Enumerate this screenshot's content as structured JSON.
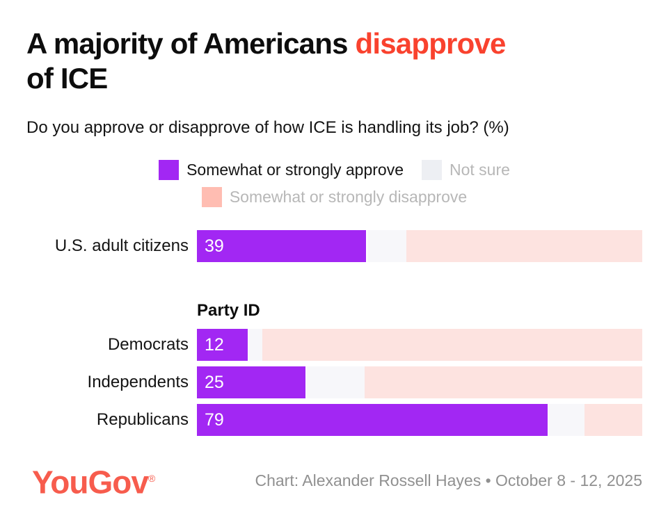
{
  "title": {
    "line1_pre": "A majority of Americans ",
    "highlight": "disapprove",
    "line2": "of ICE"
  },
  "subtitle": "Do you approve or disapprove of how ICE is handling its job? (%)",
  "legend": {
    "items": [
      {
        "label": "Somewhat or strongly approve",
        "swatch_color": "#A227F3",
        "text_color": "#141414"
      },
      {
        "label": "Not sure",
        "swatch_color": "#EDEFF3",
        "text_color": "#B7B7B7"
      },
      {
        "label": "Somewhat or strongly disapprove",
        "swatch_color": "#FFBDB2",
        "text_color": "#B7B7B7"
      }
    ]
  },
  "chart_data": {
    "type": "bar",
    "stacked": true,
    "orientation": "horizontal",
    "unit": "%",
    "title": "A majority of Americans disapprove of ICE",
    "question": "Do you approve or disapprove of how ICE is handling its job? (%)",
    "series_names": [
      "Somewhat or strongly approve",
      "Not sure",
      "Somewhat or strongly disapprove"
    ],
    "group_header": "Party ID",
    "value_labels_note": "only approve segment values are labeled on bars; not-sure and disapprove values estimated from segment widths",
    "rows": [
      {
        "label": "U.S. adult citizens",
        "approve": 39,
        "not_sure": 9,
        "disapprove": 54
      },
      {
        "label": "Democrats",
        "approve": 12,
        "not_sure": 3,
        "disapprove": 87
      },
      {
        "label": "Independents",
        "approve": 25,
        "not_sure": 13,
        "disapprove": 63
      },
      {
        "label": "Republicans",
        "approve": 79,
        "not_sure": 8,
        "disapprove": 13
      }
    ]
  },
  "colors": {
    "approve_bar": "#A227F3",
    "not_sure_bar": "#F7F7FA",
    "disapprove_bar": "#FDE3E0",
    "title_highlight": "#F9422E",
    "logo": "#F75C4D",
    "credit_text": "#909090",
    "bar_value_text": "#FFFFFF"
  },
  "footer": {
    "logo_text": "YouGov",
    "logo_reg_mark": "®",
    "credit": "Chart: Alexander Rossell Hayes • October 8 - 12, 2025"
  }
}
